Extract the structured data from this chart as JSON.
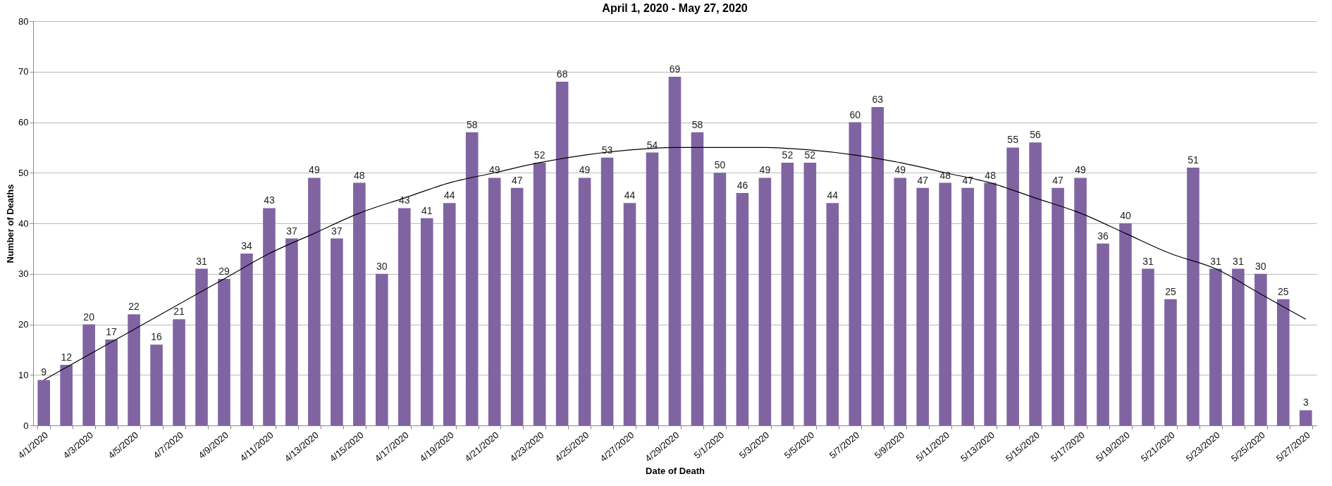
{
  "chart_data": {
    "type": "bar",
    "title": "April 1, 2020 - May 27, 2020",
    "xlabel": "Date of Death",
    "ylabel": "Number of Deaths",
    "categories": [
      "4/1/2020",
      null,
      "4/3/2020",
      null,
      "4/5/2020",
      null,
      "4/7/2020",
      null,
      "4/9/2020",
      null,
      "4/11/2020",
      null,
      "4/13/2020",
      null,
      "4/15/2020",
      null,
      "4/17/2020",
      null,
      "4/19/2020",
      null,
      "4/21/2020",
      null,
      "4/23/2020",
      null,
      "4/25/2020",
      null,
      "4/27/2020",
      null,
      "4/29/2020",
      null,
      "5/1/2020",
      null,
      "5/3/2020",
      null,
      "5/5/2020",
      null,
      "5/7/2020",
      null,
      "5/9/2020",
      null,
      "5/11/2020",
      null,
      "5/13/2020",
      null,
      "5/15/2020",
      null,
      "5/17/2020",
      null,
      "5/19/2020",
      null,
      "5/21/2020",
      null,
      "5/23/2020",
      null,
      "5/25/2020",
      null,
      "5/27/2020"
    ],
    "series": [
      {
        "color": "#8064a2",
        "values": [
          9,
          12,
          20,
          17,
          22,
          16,
          21,
          31,
          29,
          34,
          43,
          37,
          49,
          37,
          48,
          30,
          43,
          41,
          44,
          58,
          49,
          47,
          52,
          68,
          49,
          53,
          44,
          54,
          69,
          58,
          50,
          46,
          49,
          52,
          52,
          44,
          60,
          63,
          49,
          47,
          48,
          47,
          48,
          55,
          56,
          47,
          49,
          36,
          40,
          31,
          25,
          51,
          31,
          31,
          30,
          25,
          3
        ],
        "value_labels": [
          "9",
          "12",
          "20",
          "17",
          "22",
          "16",
          "21",
          "31",
          "29",
          "34",
          "43",
          "37",
          "49",
          "37",
          "48",
          "30",
          "43",
          "41",
          "44",
          "58",
          "49",
          "47",
          "52",
          "68",
          "49",
          "53",
          "44",
          "54",
          "69",
          "58",
          "50",
          "46",
          "49",
          "52",
          "52",
          "44",
          "60",
          "63",
          "49",
          "47",
          "48",
          "47",
          "48",
          "55",
          "56",
          "47",
          "49",
          "36",
          "40",
          "31",
          "25",
          "51",
          "31",
          "31",
          "30",
          "25",
          "3"
        ]
      },
      {
        "type": "line",
        "color": "#000000",
        "x": [
          "4/1/2020",
          "4/3/2020",
          "4/5/2020",
          "4/7/2020",
          "4/9/2020",
          "4/11/2020",
          "4/13/2020",
          "4/15/2020",
          "4/17/2020",
          "4/19/2020",
          "4/21/2020",
          "4/23/2020",
          "4/25/2020",
          "4/27/2020",
          "4/29/2020",
          "5/1/2020",
          "5/3/2020",
          "5/5/2020",
          "5/7/2020",
          "5/9/2020",
          "5/11/2020",
          "5/13/2020",
          "5/15/2020",
          "5/17/2020",
          "5/19/2020",
          "5/21/2020",
          "5/23/2020",
          "5/25/2020",
          "5/27/2020"
        ],
        "values": [
          9,
          14,
          19,
          24,
          29,
          34,
          38,
          42,
          45,
          48,
          50,
          52,
          53.5,
          54.5,
          55,
          55,
          55,
          54.5,
          53.5,
          52,
          50,
          48,
          45,
          42,
          38,
          34,
          31,
          26,
          21
        ]
      }
    ],
    "ylim": [
      0,
      80
    ],
    "yticks": [
      0,
      10,
      20,
      30,
      40,
      50,
      60,
      70,
      80
    ],
    "grid": "y"
  }
}
